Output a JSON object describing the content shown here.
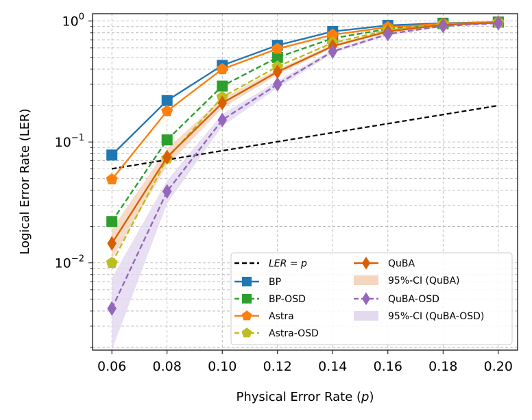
{
  "chart_data": {
    "type": "line",
    "xlabel_text": "Physical Error Rate (",
    "xlabel_var": "p",
    "xlabel_close": ")",
    "ylabel": "Logical Error Rate (LER)",
    "yscale": "log",
    "xlim": [
      0.053,
      0.207
    ],
    "ylim": [
      0.0019,
      1.15
    ],
    "grid": true,
    "legend_position": "lower-right",
    "xticks": [
      "0.06",
      "0.08",
      "0.10",
      "0.12",
      "0.14",
      "0.16",
      "0.18",
      "0.20"
    ],
    "xtick_values": [
      0.06,
      0.08,
      0.1,
      0.12,
      0.14,
      0.16,
      0.18,
      0.2
    ],
    "yticks": [
      {
        "value": 1,
        "base": "10",
        "exp": "0"
      },
      {
        "value": 0.1,
        "base": "10",
        "exp": "−1"
      },
      {
        "value": 0.01,
        "base": "10",
        "exp": "−2"
      }
    ],
    "x": [
      0.06,
      0.08,
      0.1,
      0.12,
      0.14,
      0.16,
      0.18,
      0.2
    ],
    "reference": {
      "name_italic": "LER",
      "name_tail": " = ",
      "name_var": "p",
      "color": "#000000",
      "x": [
        0.06,
        0.2
      ],
      "values": [
        0.06,
        0.2
      ]
    },
    "series": [
      {
        "name": "BP",
        "color": "#1f77b4",
        "style": "solid",
        "marker": "square",
        "values": [
          0.078,
          0.22,
          0.43,
          0.63,
          0.82,
          0.92,
          0.96,
          0.98
        ]
      },
      {
        "name": "BP-OSD",
        "color": "#2ca02c",
        "style": "dashed",
        "marker": "square",
        "values": [
          0.022,
          0.104,
          0.29,
          0.5,
          0.72,
          0.86,
          0.95,
          0.98
        ]
      },
      {
        "name": "Astra",
        "color": "#ff7f0e",
        "style": "solid",
        "marker": "pentagon",
        "values": [
          0.049,
          0.18,
          0.4,
          0.59,
          0.77,
          0.89,
          0.95,
          0.98
        ]
      },
      {
        "name": "Astra-OSD",
        "color": "#bcbd22",
        "style": "dashed",
        "marker": "pentagon",
        "values": [
          0.01,
          0.073,
          0.235,
          0.42,
          0.66,
          0.84,
          0.94,
          0.97
        ]
      },
      {
        "name": "QuBA",
        "color": "#d95f02",
        "style": "solid",
        "marker": "diamond",
        "values": [
          0.0145,
          0.075,
          0.21,
          0.38,
          0.62,
          0.82,
          0.93,
          0.97
        ],
        "ci_name": "95%-CI (QuBA)",
        "ci_color": "#f5d5be",
        "ci_lower": [
          0.0108,
          0.064,
          0.19,
          0.36,
          0.6,
          0.8,
          0.92,
          0.965
        ],
        "ci_upper": [
          0.019,
          0.088,
          0.23,
          0.4,
          0.64,
          0.84,
          0.94,
          0.975
        ]
      },
      {
        "name": "QuBA-OSD",
        "color": "#9467bd",
        "style": "dashed",
        "marker": "diamond",
        "values": [
          0.0042,
          0.039,
          0.152,
          0.3,
          0.56,
          0.78,
          0.91,
          0.96
        ],
        "ci_name": "95%-CI (QuBA-OSD)",
        "ci_color": "#e4daf0",
        "ci_lower": [
          0.0019,
          0.031,
          0.135,
          0.28,
          0.54,
          0.76,
          0.9,
          0.955
        ],
        "ci_upper": [
          0.0075,
          0.048,
          0.17,
          0.32,
          0.58,
          0.8,
          0.92,
          0.965
        ]
      }
    ]
  }
}
